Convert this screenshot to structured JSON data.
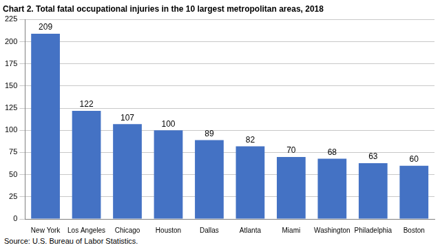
{
  "chart_data": {
    "type": "bar",
    "title": "Chart 2. Total fatal occupational injuries in the 10 largest metropolitan areas, 2018",
    "source": "Source: U.S. Bureau of Labor Statistics.",
    "categories": [
      "New York",
      "Los Angeles",
      "Chicago",
      "Houston",
      "Dallas",
      "Atlanta",
      "Miami",
      "Washington",
      "Philadelphia",
      "Boston"
    ],
    "values": [
      209,
      122,
      107,
      100,
      89,
      82,
      70,
      68,
      63,
      60
    ],
    "color": "#4472c4",
    "ylim": [
      0,
      225
    ],
    "yticks": [
      0,
      25,
      50,
      75,
      100,
      125,
      150,
      175,
      200,
      225
    ],
    "grid": true,
    "data_labels": true
  }
}
